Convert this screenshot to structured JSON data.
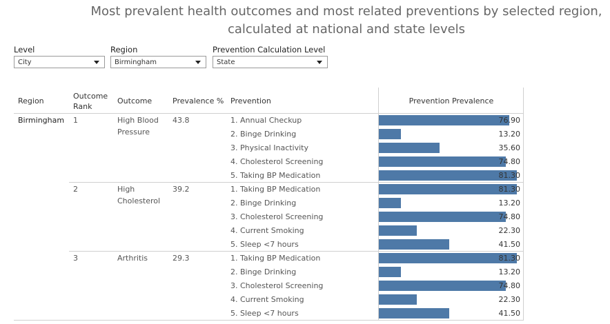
{
  "title": "Most prevalent health outcomes and most related preventions by selected region, calculated at national and state levels",
  "filters": [
    {
      "label": "Level",
      "value": "City"
    },
    {
      "label": "Region",
      "value": "Birmingham"
    },
    {
      "label": "Prevention Calculation Level",
      "value": "State"
    }
  ],
  "headers": {
    "region": "Region",
    "rank": "Outcome Rank",
    "outcome": "Outcome",
    "prevalence": "Prevalence %",
    "prevention": "Prevention",
    "prevention_prevalence": "Prevention Prevalence"
  },
  "region": "Birmingham",
  "bar_color": "#4e79a7",
  "bar_max": 85,
  "outcomes": [
    {
      "rank": "1",
      "outcome": "High Blood Pressure",
      "prevalence": "43.8",
      "preventions": [
        {
          "name": "1. Annual Checkup",
          "value": 76.9,
          "label": "76.90"
        },
        {
          "name": "2. Binge Drinking",
          "value": 13.2,
          "label": "13.20"
        },
        {
          "name": "3. Physical Inactivity",
          "value": 35.6,
          "label": "35.60"
        },
        {
          "name": "4. Cholesterol Screening",
          "value": 74.8,
          "label": "74.80"
        },
        {
          "name": "5. Taking BP Medication",
          "value": 81.3,
          "label": "81.30"
        }
      ]
    },
    {
      "rank": "2",
      "outcome": "High Cholesterol",
      "prevalence": "39.2",
      "preventions": [
        {
          "name": "1. Taking BP Medication",
          "value": 81.3,
          "label": "81.30"
        },
        {
          "name": "2. Binge Drinking",
          "value": 13.2,
          "label": "13.20"
        },
        {
          "name": "3. Cholesterol Screening",
          "value": 74.8,
          "label": "74.80"
        },
        {
          "name": "4. Current Smoking",
          "value": 22.3,
          "label": "22.30"
        },
        {
          "name": "5. Sleep <7 hours",
          "value": 41.5,
          "label": "41.50"
        }
      ]
    },
    {
      "rank": "3",
      "outcome": "Arthritis",
      "prevalence": "29.3",
      "preventions": [
        {
          "name": "1. Taking BP Medication",
          "value": 81.3,
          "label": "81.30"
        },
        {
          "name": "2. Binge Drinking",
          "value": 13.2,
          "label": "13.20"
        },
        {
          "name": "3. Cholesterol Screening",
          "value": 74.8,
          "label": "74.80"
        },
        {
          "name": "4. Current Smoking",
          "value": 22.3,
          "label": "22.30"
        },
        {
          "name": "5. Sleep <7 hours",
          "value": 41.5,
          "label": "41.50"
        }
      ]
    }
  ]
}
